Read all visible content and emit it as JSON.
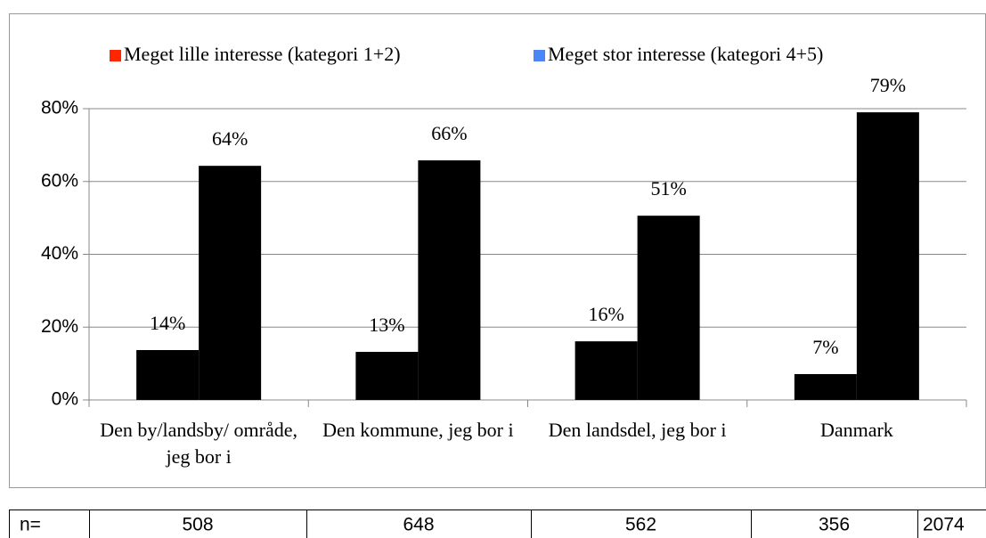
{
  "chart_data": {
    "type": "bar",
    "categories": [
      "Den by/landsby/ område, jeg bor i",
      "Den kommune, jeg bor i",
      "Den landsdel, jeg bor i",
      "Danmark"
    ],
    "series": [
      {
        "name": "Meget lille interesse (kategori 1+2)",
        "color": "#ff2600",
        "values": [
          13.7,
          13.2,
          16.1,
          7.1
        ],
        "value_labels": [
          "14%",
          "13%",
          "16%",
          "7%"
        ]
      },
      {
        "name": "Meget stor interesse (kategori 4+5)",
        "color": "#4a86f5",
        "values": [
          64.3,
          65.8,
          50.6,
          79.0
        ],
        "value_labels": [
          "64%",
          "66%",
          "51%",
          "79%"
        ]
      }
    ],
    "ylim": [
      0,
      80
    ],
    "yticks": [
      {
        "value": 0,
        "label": "0%"
      },
      {
        "value": 20,
        "label": "20%"
      },
      {
        "value": 40,
        "label": "40%"
      },
      {
        "value": 60,
        "label": "60%"
      },
      {
        "value": 80,
        "label": "80%"
      }
    ],
    "grid": true,
    "legend": "top"
  },
  "table": {
    "rows": [
      [
        "n=",
        "508",
        "648",
        "562",
        "356",
        "2074"
      ]
    ]
  }
}
